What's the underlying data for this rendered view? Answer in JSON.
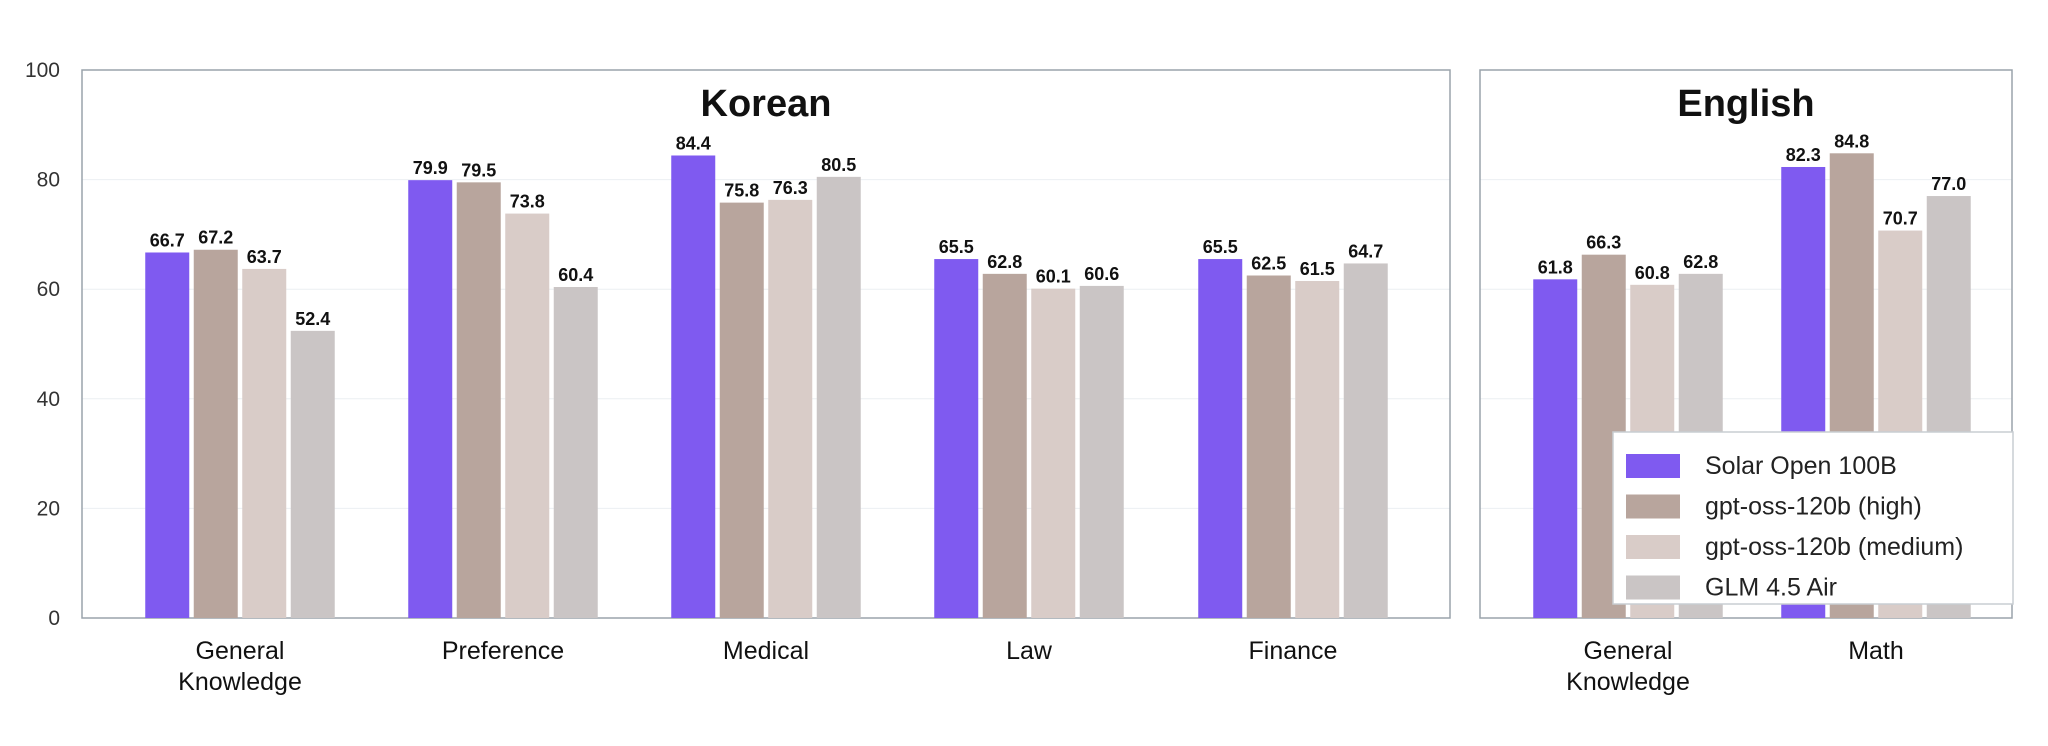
{
  "chart_data": [
    {
      "type": "bar",
      "title": "Korean",
      "categories": [
        "General\nKnowledge",
        "Preference",
        "Medical",
        "Law",
        "Finance"
      ],
      "series": [
        {
          "name": "Solar Open 100B",
          "values": [
            66.7,
            79.9,
            84.4,
            65.5,
            65.5
          ]
        },
        {
          "name": "gpt-oss-120b (high)",
          "values": [
            67.2,
            79.5,
            75.8,
            62.8,
            62.5
          ]
        },
        {
          "name": "gpt-oss-120b (medium)",
          "values": [
            63.7,
            73.8,
            76.3,
            60.1,
            61.5
          ]
        },
        {
          "name": "GLM 4.5 Air",
          "values": [
            52.4,
            60.4,
            80.5,
            60.6,
            64.7
          ]
        }
      ],
      "ylim": [
        0,
        100
      ],
      "yticks": [
        "0",
        "20",
        "40",
        "60",
        "80",
        "100"
      ],
      "value_labels": [
        [
          "66.7",
          "79.9",
          "84.4",
          "65.5",
          "65.5"
        ],
        [
          "67.2",
          "79.5",
          "75.8",
          "62.8",
          "62.5"
        ],
        [
          "63.7",
          "73.8",
          "76.3",
          "60.1",
          "61.5"
        ],
        [
          "52.4",
          "60.4",
          "80.5",
          "60.6",
          "64.7"
        ]
      ],
      "grid": true
    },
    {
      "type": "bar",
      "title": "English",
      "categories": [
        "General\nKnowledge",
        "Math"
      ],
      "series": [
        {
          "name": "Solar Open 100B",
          "values": [
            61.8,
            82.3
          ]
        },
        {
          "name": "gpt-oss-120b (high)",
          "values": [
            66.3,
            84.8
          ]
        },
        {
          "name": "gpt-oss-120b (medium)",
          "values": [
            60.8,
            70.7
          ]
        },
        {
          "name": "GLM 4.5 Air",
          "values": [
            62.8,
            77.0
          ]
        }
      ],
      "ylim": [
        0,
        100
      ],
      "value_labels": [
        [
          "61.8",
          "82.3"
        ],
        [
          "66.3",
          "84.8"
        ],
        [
          "60.8",
          "70.7"
        ],
        [
          "62.8",
          "77.0"
        ]
      ],
      "grid": true,
      "legend": "bottom-right"
    }
  ],
  "legend": {
    "entries": [
      "Solar Open 100B",
      "gpt-oss-120b (high)",
      "gpt-oss-120b (medium)",
      "GLM 4.5 Air"
    ]
  },
  "colors": {
    "series": [
      "#7f5af0",
      "#b8a59d",
      "#d9ccc8",
      "#cac5c5"
    ],
    "frame": "#9aa3ab",
    "grid": "#eceff2",
    "axis_tick_color": "#4b2a52"
  }
}
